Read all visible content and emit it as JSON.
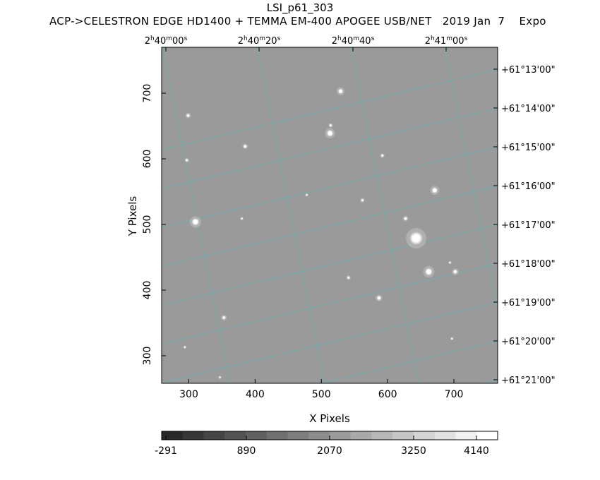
{
  "header": {
    "title": "LSI_p61_303",
    "subtitle": "ACP->CELESTRON EDGE HD1400 + TEMMA EM-400 APOGEE USB/NET   2019 Jan  7    Expo"
  },
  "chart_data": {
    "type": "heatmap",
    "title": "LSI_p61_303",
    "xlabel": "X Pixels",
    "ylabel": "Y Pixels",
    "xlim": [
      259,
      766
    ],
    "ylim": [
      258,
      770
    ],
    "x_ticks": [
      300,
      400,
      500,
      600,
      700
    ],
    "y_ticks": [
      300,
      400,
      500,
      600,
      700
    ],
    "ra_ticks": [
      {
        "h": "2",
        "m": "40",
        "s": "00"
      },
      {
        "h": "2",
        "m": "40",
        "s": "20"
      },
      {
        "h": "2",
        "m": "40",
        "s": "40"
      },
      {
        "h": "2",
        "m": "41",
        "s": "00"
      }
    ],
    "dec_ticks": [
      "+61°13'00\"",
      "+61°14'00\"",
      "+61°15'00\"",
      "+61°16'00\"",
      "+61°17'00\"",
      "+61°18'00\"",
      "+61°19'00\"",
      "+61°20'00\"",
      "+61°21'00\""
    ],
    "colorbar": {
      "labels": [
        "-291",
        "890",
        "2070",
        "3250",
        "4140"
      ],
      "min": -291,
      "max": 4140
    },
    "grid": true,
    "grid_color": "#33cccc",
    "background_color": "#9a9a9a",
    "stars": [
      {
        "x": 529,
        "y": 703,
        "r": 3.5
      },
      {
        "x": 513,
        "y": 639,
        "r": 4.5
      },
      {
        "x": 514,
        "y": 651,
        "r": 2
      },
      {
        "x": 299,
        "y": 666,
        "r": 2.5
      },
      {
        "x": 385,
        "y": 619,
        "r": 2.5
      },
      {
        "x": 592,
        "y": 605,
        "r": 2
      },
      {
        "x": 297,
        "y": 598,
        "r": 2
      },
      {
        "x": 671,
        "y": 552,
        "r": 4
      },
      {
        "x": 562,
        "y": 537,
        "r": 2
      },
      {
        "x": 478,
        "y": 545,
        "r": 1.5
      },
      {
        "x": 627,
        "y": 509,
        "r": 2.5
      },
      {
        "x": 310,
        "y": 504,
        "r": 5
      },
      {
        "x": 380,
        "y": 509,
        "r": 1.5
      },
      {
        "x": 643,
        "y": 479,
        "r": 9
      },
      {
        "x": 662,
        "y": 428,
        "r": 5
      },
      {
        "x": 702,
        "y": 428,
        "r": 3
      },
      {
        "x": 694,
        "y": 442,
        "r": 1.5
      },
      {
        "x": 541,
        "y": 419,
        "r": 2
      },
      {
        "x": 587,
        "y": 388,
        "r": 3
      },
      {
        "x": 353,
        "y": 358,
        "r": 2.5
      },
      {
        "x": 294,
        "y": 313,
        "r": 1.5
      },
      {
        "x": 697,
        "y": 326,
        "r": 1.5
      },
      {
        "x": 347,
        "y": 267,
        "r": 1.5
      }
    ]
  }
}
